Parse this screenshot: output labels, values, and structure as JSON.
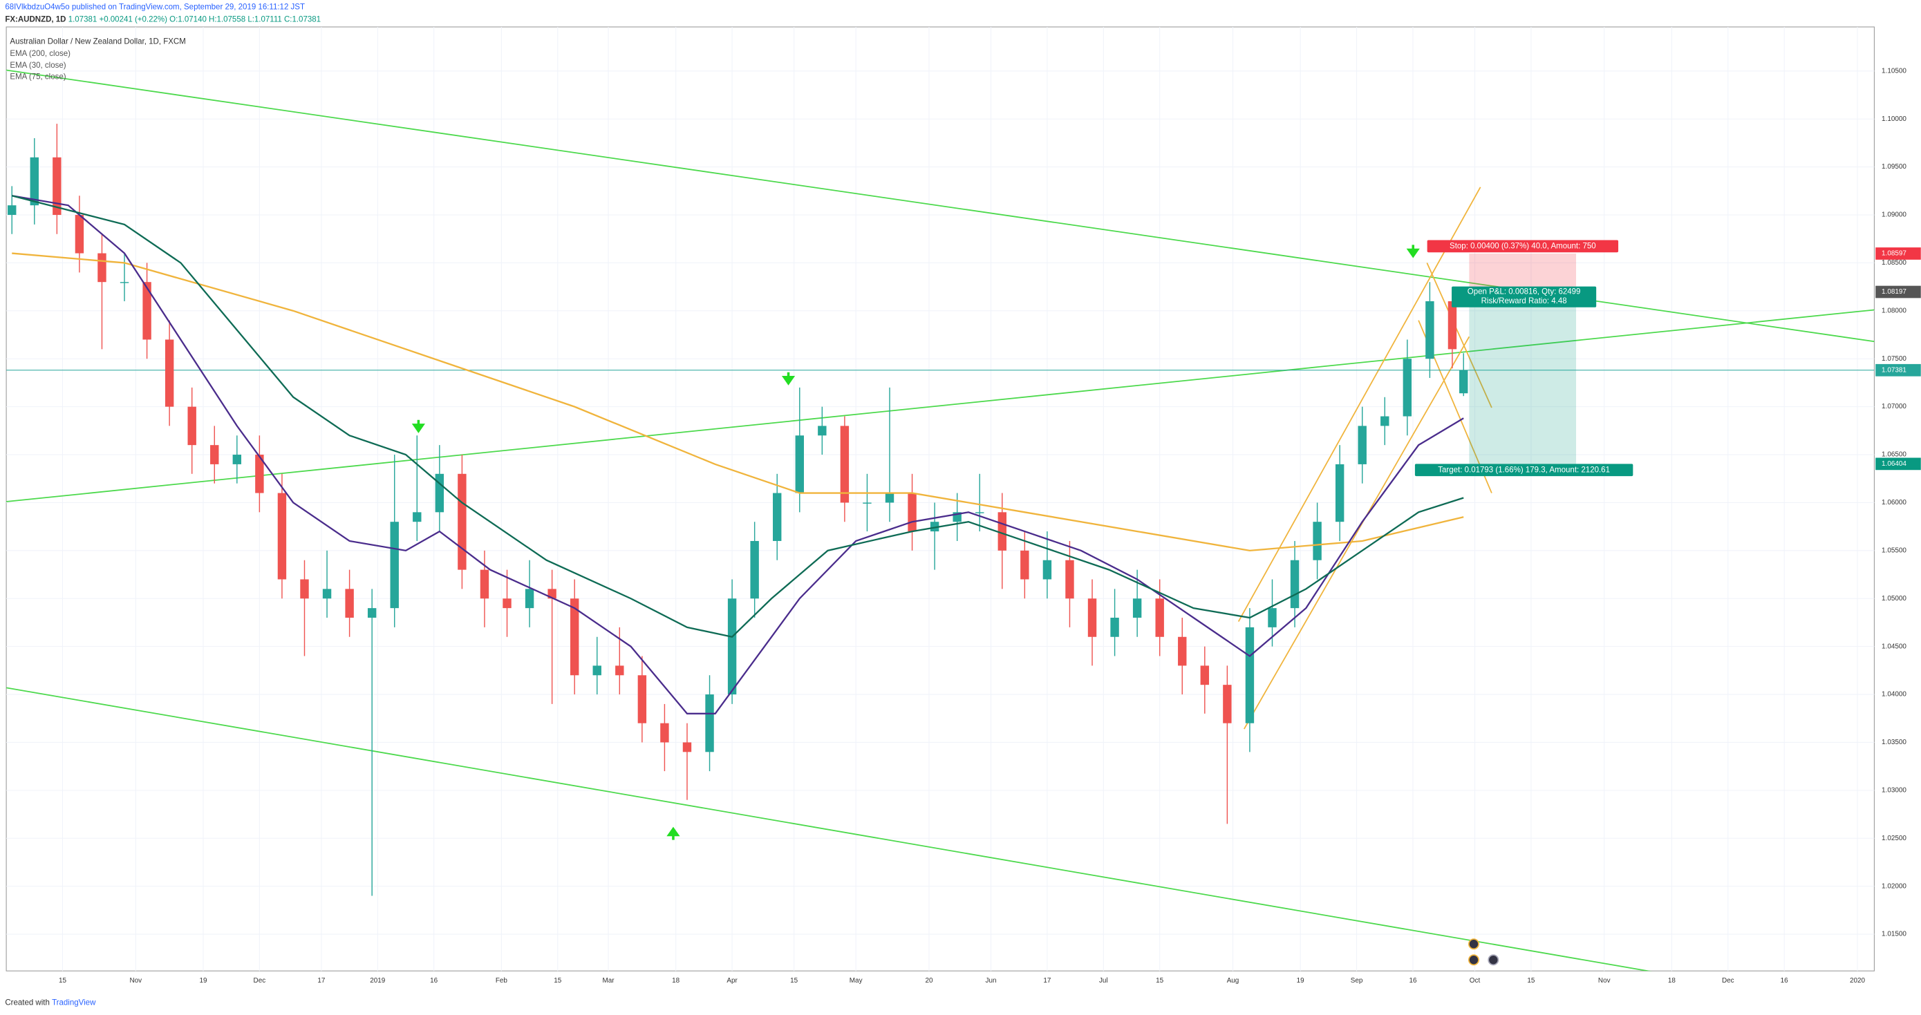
{
  "header": {
    "publisher": "68IVlkbdzuO4w5o published on TradingView.com, September 29, 2019 16:11:12 JST",
    "symbol": "FX:AUDNZD, 1D",
    "last": "1.07381",
    "change": "+0.00241 (+0.22%)",
    "ohlc": "O:1.07140 H:1.07558 L:1.07111 C:1.07381"
  },
  "footer": {
    "created": "Created with",
    "brand": "TradingView"
  },
  "chart_data": {
    "type": "candlestick",
    "title": "Australian Dollar / New Zealand Dollar, 1D, FXCM",
    "up_color": "#26a69a",
    "down_color": "#ef5350",
    "grid": true,
    "x": [
      0,
      4,
      8,
      12,
      16,
      20,
      24,
      28,
      32,
      36,
      40,
      44,
      48,
      52,
      56,
      60,
      64,
      68,
      72,
      76,
      80,
      84,
      88,
      92,
      96,
      100,
      104,
      108,
      112,
      116,
      120,
      124,
      128,
      132,
      136,
      140,
      144,
      148,
      152,
      156,
      160,
      164,
      168,
      172,
      176,
      180,
      184,
      188,
      192,
      196,
      200,
      204,
      208,
      212,
      216,
      220,
      224,
      228,
      232,
      236,
      240,
      244,
      248,
      252,
      256,
      258
    ],
    "open": [
      1.09,
      1.091,
      1.096,
      1.09,
      1.086,
      1.083,
      1.083,
      1.077,
      1.07,
      1.066,
      1.064,
      1.065,
      1.061,
      1.052,
      1.05,
      1.051,
      1.048,
      1.049,
      1.058,
      1.059,
      1.063,
      1.053,
      1.05,
      1.049,
      1.051,
      1.05,
      1.042,
      1.043,
      1.042,
      1.037,
      1.035,
      1.034,
      1.04,
      1.05,
      1.056,
      1.061,
      1.067,
      1.068,
      1.06,
      1.06,
      1.061,
      1.057,
      1.058,
      1.059,
      1.059,
      1.055,
      1.052,
      1.054,
      1.05,
      1.046,
      1.048,
      1.05,
      1.046,
      1.043,
      1.041,
      1.037,
      1.047,
      1.049,
      1.054,
      1.058,
      1.064,
      1.068,
      1.069,
      1.075,
      1.081,
      1.0714
    ],
    "high": [
      1.093,
      1.098,
      1.0995,
      1.092,
      1.088,
      1.086,
      1.085,
      1.079,
      1.072,
      1.068,
      1.067,
      1.067,
      1.063,
      1.054,
      1.055,
      1.053,
      1.051,
      1.065,
      1.067,
      1.066,
      1.065,
      1.055,
      1.053,
      1.054,
      1.053,
      1.052,
      1.046,
      1.047,
      1.044,
      1.039,
      1.037,
      1.042,
      1.052,
      1.058,
      1.063,
      1.072,
      1.07,
      1.069,
      1.063,
      1.072,
      1.063,
      1.06,
      1.061,
      1.063,
      1.061,
      1.057,
      1.057,
      1.056,
      1.052,
      1.051,
      1.053,
      1.052,
      1.048,
      1.045,
      1.043,
      1.049,
      1.052,
      1.056,
      1.06,
      1.066,
      1.07,
      1.071,
      1.077,
      1.083,
      1.082,
      1.07558
    ],
    "low": [
      1.088,
      1.089,
      1.088,
      1.084,
      1.076,
      1.081,
      1.075,
      1.068,
      1.063,
      1.062,
      1.062,
      1.059,
      1.05,
      1.044,
      1.048,
      1.046,
      1.019,
      1.047,
      1.056,
      1.057,
      1.051,
      1.047,
      1.046,
      1.047,
      1.039,
      1.04,
      1.04,
      1.04,
      1.035,
      1.032,
      1.029,
      1.032,
      1.039,
      1.048,
      1.054,
      1.059,
      1.065,
      1.058,
      1.057,
      1.058,
      1.055,
      1.053,
      1.056,
      1.057,
      1.051,
      1.05,
      1.05,
      1.047,
      1.043,
      1.044,
      1.046,
      1.044,
      1.04,
      1.038,
      1.0265,
      1.034,
      1.045,
      1.047,
      1.052,
      1.056,
      1.062,
      1.066,
      1.067,
      1.073,
      1.074,
      1.07111
    ],
    "close": [
      1.091,
      1.096,
      1.09,
      1.086,
      1.083,
      1.083,
      1.077,
      1.07,
      1.066,
      1.064,
      1.065,
      1.061,
      1.052,
      1.05,
      1.051,
      1.048,
      1.049,
      1.058,
      1.059,
      1.063,
      1.053,
      1.05,
      1.049,
      1.051,
      1.05,
      1.042,
      1.043,
      1.042,
      1.037,
      1.035,
      1.034,
      1.04,
      1.05,
      1.056,
      1.061,
      1.067,
      1.068,
      1.06,
      1.06,
      1.061,
      1.057,
      1.058,
      1.059,
      1.059,
      1.055,
      1.052,
      1.054,
      1.05,
      1.046,
      1.048,
      1.05,
      1.046,
      1.043,
      1.041,
      1.037,
      1.047,
      1.049,
      1.054,
      1.058,
      1.064,
      1.068,
      1.069,
      1.075,
      1.081,
      1.076,
      1.07381
    ],
    "series": [
      {
        "name": "EMA (200, close)",
        "color": "#f0b43c",
        "x": [
          0,
          20,
          50,
          75,
          100,
          125,
          140,
          160,
          180,
          200,
          220,
          240,
          258
        ],
        "values": [
          1.086,
          1.085,
          1.08,
          1.075,
          1.07,
          1.064,
          1.061,
          1.061,
          1.059,
          1.057,
          1.055,
          1.056,
          1.0585
        ]
      },
      {
        "name": "EMA (30, close)",
        "color": "#4a2c8c",
        "x": [
          0,
          10,
          20,
          30,
          40,
          50,
          60,
          70,
          76,
          85,
          100,
          110,
          120,
          125,
          135,
          140,
          150,
          160,
          170,
          180,
          190,
          200,
          210,
          215,
          220,
          230,
          240,
          250,
          258
        ],
        "values": [
          1.092,
          1.091,
          1.086,
          1.077,
          1.068,
          1.06,
          1.056,
          1.055,
          1.057,
          1.053,
          1.049,
          1.045,
          1.038,
          1.038,
          1.046,
          1.05,
          1.056,
          1.058,
          1.059,
          1.057,
          1.055,
          1.052,
          1.048,
          1.046,
          1.044,
          1.049,
          1.058,
          1.066,
          1.0688
        ]
      },
      {
        "name": "EMA (75, close)",
        "color": "#0e6b55",
        "x": [
          0,
          20,
          30,
          40,
          50,
          60,
          70,
          80,
          95,
          110,
          120,
          128,
          135,
          145,
          160,
          170,
          180,
          195,
          210,
          220,
          230,
          240,
          250,
          258
        ],
        "values": [
          1.092,
          1.089,
          1.085,
          1.078,
          1.071,
          1.067,
          1.065,
          1.06,
          1.054,
          1.05,
          1.047,
          1.046,
          1.05,
          1.055,
          1.057,
          1.058,
          1.056,
          1.053,
          1.049,
          1.048,
          1.051,
          1.055,
          1.059,
          1.0605
        ]
      }
    ],
    "trendlines": [
      {
        "color": "#4cd94c",
        "x": [
          -1,
          331
        ],
        "y": [
          1.1051,
          1.0768
        ]
      },
      {
        "color": "#4cd94c",
        "x": [
          -1,
          331
        ],
        "y": [
          1.0601,
          1.0801
        ]
      },
      {
        "color": "#4cd94c",
        "x": [
          -1,
          324
        ],
        "y": [
          1.0407,
          1.0078
        ]
      },
      {
        "color": "#f0b43c",
        "x": [
          218,
          261
        ],
        "y": [
          1.0476,
          1.0929
        ]
      },
      {
        "color": "#f0b43c",
        "x": [
          219,
          259
        ],
        "y": [
          1.0364,
          1.0773
        ]
      },
      {
        "color": "#f0b43c",
        "x": [
          251.5,
          263
        ],
        "y": [
          1.085,
          1.0699
        ]
      },
      {
        "color": "#f0b43c",
        "x": [
          250,
          263
        ],
        "y": [
          1.079,
          1.061
        ]
      }
    ],
    "position": {
      "x": [
        259,
        278
      ],
      "stop": 1.08597,
      "entry": 1.08197,
      "target": 1.06404,
      "stop_label": "Stop: 0.00400 (0.37%) 40.0, Amount: 750",
      "pnl_label": "Open P&L: 0.00816, Qty: 62499",
      "rr_label": "Risk/Reward Ratio: 4.48",
      "target_label": "Target: 0.01793 (1.66%) 179.3, Amount: 2120.61"
    },
    "price_labels": [
      {
        "value": 1.08597,
        "color": "#f23645"
      },
      {
        "value": 1.08197,
        "color": "#555555"
      },
      {
        "value": 1.07381,
        "color": "#26a69a"
      },
      {
        "value": 1.06404,
        "color": "#089981"
      }
    ],
    "xlim": [
      -1,
      331
    ],
    "ylim": [
      1.01117,
      1.1096
    ],
    "xticks": [
      {
        "value": 9,
        "label": "15"
      },
      {
        "value": 22,
        "label": "Nov"
      },
      {
        "value": 34,
        "label": "19"
      },
      {
        "value": 44,
        "label": "Dec"
      },
      {
        "value": 55,
        "label": "17"
      },
      {
        "value": 65,
        "label": "2019"
      },
      {
        "value": 75,
        "label": "16"
      },
      {
        "value": 87,
        "label": "Feb"
      },
      {
        "value": 97,
        "label": "15"
      },
      {
        "value": 106,
        "label": "Mar"
      },
      {
        "value": 118,
        "label": "18"
      },
      {
        "value": 128,
        "label": "Apr"
      },
      {
        "value": 139,
        "label": "15"
      },
      {
        "value": 150,
        "label": "May"
      },
      {
        "value": 163,
        "label": "20"
      },
      {
        "value": 174,
        "label": "Jun"
      },
      {
        "value": 184,
        "label": "17"
      },
      {
        "value": 194,
        "label": "Jul"
      },
      {
        "value": 204,
        "label": "15"
      },
      {
        "value": 217,
        "label": "Aug"
      },
      {
        "value": 229,
        "label": "19"
      },
      {
        "value": 239,
        "label": "Sep"
      },
      {
        "value": 249,
        "label": "16"
      },
      {
        "value": 260,
        "label": "Oct"
      },
      {
        "value": 270,
        "label": "15"
      },
      {
        "value": 283,
        "label": "Nov"
      },
      {
        "value": 295,
        "label": "18"
      },
      {
        "value": 305,
        "label": "Dec"
      },
      {
        "value": 315,
        "label": "16"
      },
      {
        "value": 328,
        "label": "2020"
      }
    ],
    "yticks": [
      {
        "value": 1.015,
        "label": "1.01500"
      },
      {
        "value": 1.02,
        "label": "1.02000"
      },
      {
        "value": 1.025,
        "label": "1.02500"
      },
      {
        "value": 1.03,
        "label": "1.03000"
      },
      {
        "value": 1.035,
        "label": "1.03500"
      },
      {
        "value": 1.04,
        "label": "1.04000"
      },
      {
        "value": 1.045,
        "label": "1.04500"
      },
      {
        "value": 1.05,
        "label": "1.05000"
      },
      {
        "value": 1.055,
        "label": "1.05500"
      },
      {
        "value": 1.06,
        "label": "1.06000"
      },
      {
        "value": 1.065,
        "label": "1.06500"
      },
      {
        "value": 1.07,
        "label": "1.07000"
      },
      {
        "value": 1.075,
        "label": "1.07500"
      },
      {
        "value": 1.08,
        "label": "1.08000"
      },
      {
        "value": 1.085,
        "label": "1.08500"
      },
      {
        "value": 1.09,
        "label": "1.09000"
      },
      {
        "value": 1.095,
        "label": "1.09500"
      },
      {
        "value": 1.1,
        "label": "1.10000"
      },
      {
        "value": 1.105,
        "label": "1.10500"
      }
    ]
  }
}
